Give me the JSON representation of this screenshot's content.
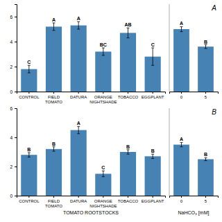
{
  "chart_data": [
    {
      "type": "bar",
      "categories": [
        "CONTROL",
        "FIELD\nTOMATO",
        "DATURA",
        "ORANGE\nNIGHTSHADE",
        "TOBACCO",
        "EGGPLANT"
      ],
      "values": [
        1.8,
        5.2,
        5.3,
        3.2,
        4.7,
        2.8
      ],
      "errors": [
        0.3,
        0.3,
        0.3,
        0.3,
        0.4,
        0.7
      ],
      "annotations": [
        "C",
        "A",
        "A",
        "BC",
        "AB",
        "C"
      ],
      "ylim": [
        0,
        7.0
      ],
      "yticks": [
        0,
        2,
        4,
        6
      ]
    },
    {
      "type": "bar",
      "title": "A",
      "categories": [
        "0",
        "5"
      ],
      "values": [
        5.0,
        3.6
      ],
      "errors": [
        0.2,
        0.15
      ],
      "annotations": [
        "A",
        "B"
      ],
      "ylim": [
        0,
        7.0
      ],
      "tick_labels": "x"
    },
    {
      "type": "bar",
      "xlabel": "TOMATO ROOTSTOCKS",
      "categories": [
        "CONTROL",
        "FIELD\nTOMATO",
        "DATURA",
        "ORANGE\nNIGHTSHADE",
        "TOBACCO",
        "EGGPLANT"
      ],
      "values": [
        2.8,
        3.2,
        4.5,
        1.5,
        3.0,
        2.7
      ],
      "errors": [
        0.15,
        0.15,
        0.25,
        0.2,
        0.15,
        0.15
      ],
      "annotations": [
        "B",
        "B",
        "A",
        "C",
        "B",
        "B"
      ],
      "ylim": [
        0,
        6.0
      ],
      "yticks": [
        0,
        2,
        4,
        6
      ]
    },
    {
      "type": "bar",
      "title": "B",
      "xlabel": "NaHCO₃ [mM]",
      "categories": [
        "0",
        "5"
      ],
      "values": [
        3.5,
        2.5
      ],
      "errors": [
        0.15,
        0.1
      ],
      "annotations": [
        "A",
        "B"
      ],
      "ylim": [
        0,
        6.0
      ],
      "tick_labels": "x"
    }
  ]
}
